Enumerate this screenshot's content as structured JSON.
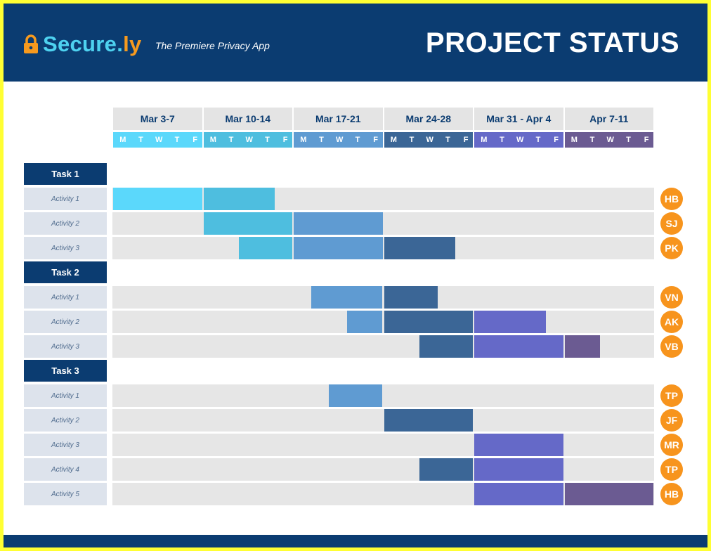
{
  "header": {
    "brand_main": "Secure.",
    "brand_accent": "ly",
    "tagline": "The Premiere Privacy App",
    "title": "PROJECT STATUS",
    "logo_icon": "lock-icon"
  },
  "colors": {
    "header_bg": "#0b3c71",
    "badge": "#f7941d",
    "bar_week1": "#5bd8fb",
    "bar_week2": "#4ebedf",
    "bar_week3": "#5f9bd2",
    "bar_week4": "#3b6696",
    "bar_week5": "#6569c8",
    "bar_week6": "#6b5b92"
  },
  "chart_data": {
    "type": "gantt",
    "weeks": [
      {
        "label": "Mar 3-7",
        "days": [
          "M",
          "T",
          "W",
          "T",
          "F"
        ],
        "color": "#5bd8fb"
      },
      {
        "label": "Mar 10-14",
        "days": [
          "M",
          "T",
          "W",
          "T",
          "F"
        ],
        "color": "#4ebedf"
      },
      {
        "label": "Mar 17-21",
        "days": [
          "M",
          "T",
          "W",
          "T",
          "F"
        ],
        "color": "#5f9bd2"
      },
      {
        "label": "Mar 24-28",
        "days": [
          "M",
          "T",
          "W",
          "T",
          "F"
        ],
        "color": "#3b6696"
      },
      {
        "label": "Mar 31 - Apr 4",
        "days": [
          "M",
          "T",
          "W",
          "T",
          "F"
        ],
        "color": "#6569c8"
      },
      {
        "label": "Apr 7-11",
        "days": [
          "M",
          "T",
          "W",
          "T",
          "F"
        ],
        "color": "#6b5b92"
      }
    ],
    "tasks": [
      {
        "name": "Task 1",
        "activities": [
          {
            "name": "Activity 1",
            "start_day": 0,
            "end_day": 9,
            "owner": "HB"
          },
          {
            "name": "Activity 2",
            "start_day": 5,
            "end_day": 15,
            "owner": "SJ"
          },
          {
            "name": "Activity 3",
            "start_day": 7,
            "end_day": 19,
            "owner": "PK"
          }
        ]
      },
      {
        "name": "Task 2",
        "activities": [
          {
            "name": "Activity 1",
            "start_day": 11,
            "end_day": 18,
            "owner": "VN"
          },
          {
            "name": "Activity 2",
            "start_day": 13,
            "end_day": 24,
            "owner": "AK"
          },
          {
            "name": "Activity 3",
            "start_day": 17,
            "end_day": 27,
            "owner": "VB"
          }
        ]
      },
      {
        "name": "Task 3",
        "activities": [
          {
            "name": "Activity 1",
            "start_day": 12,
            "end_day": 15,
            "owner": "TP"
          },
          {
            "name": "Activity 2",
            "start_day": 15,
            "end_day": 20,
            "owner": "JF"
          },
          {
            "name": "Activity 3",
            "start_day": 20,
            "end_day": 25,
            "owner": "MR"
          },
          {
            "name": "Activity 4",
            "start_day": 17,
            "end_day": 25,
            "owner": "TP"
          },
          {
            "name": "Activity 5",
            "start_day": 20,
            "end_day": 30,
            "owner": "HB"
          }
        ]
      }
    ]
  }
}
